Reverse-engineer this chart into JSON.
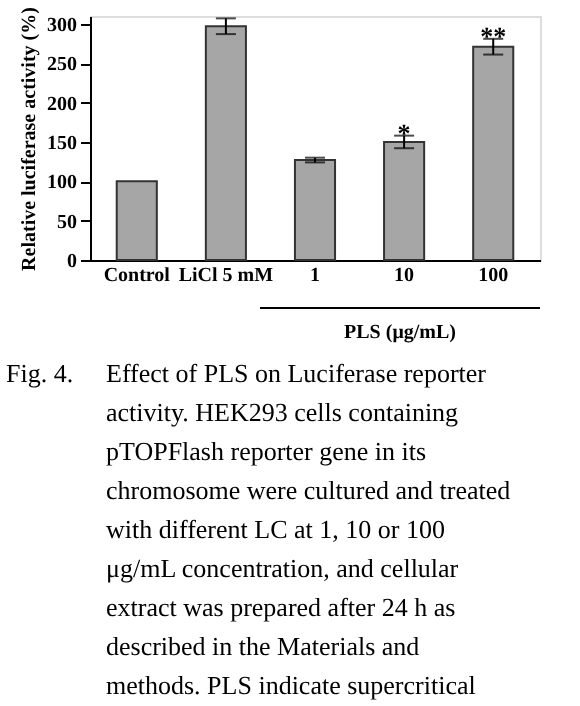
{
  "chart_data": {
    "type": "bar",
    "ylabel": "Relative luciferase activity (%)",
    "categories": [
      "Control",
      "LiCl 5 mM",
      "1",
      "10",
      "100"
    ],
    "values": [
      100,
      297,
      127,
      150,
      271
    ],
    "errors": [
      null,
      10,
      3,
      8,
      10
    ],
    "color": "#a6a6a6",
    "ylim": [
      0,
      310
    ],
    "yticks": [
      0,
      50,
      100,
      150,
      200,
      250,
      300
    ],
    "grid": false,
    "annotations": [
      {
        "text": "*",
        "x": "10",
        "y": 160
      },
      {
        "text": "**",
        "x": "100",
        "y": 283
      },
      "PLS (μg/mL)",
      "Fig. 4.",
      "Effect of PLS on Luciferase reporter activity. HEK293 cells containing pTOPFlash reporter gene in its chromosome were cultured and treated with different LC at 1, 10 or 100 μg/mL concentration, and cellular extract was prepared after 24 h as described in the Materials and methods. PLS indicate supercritical carbon dioxide extraction from P"
    ]
  }
}
